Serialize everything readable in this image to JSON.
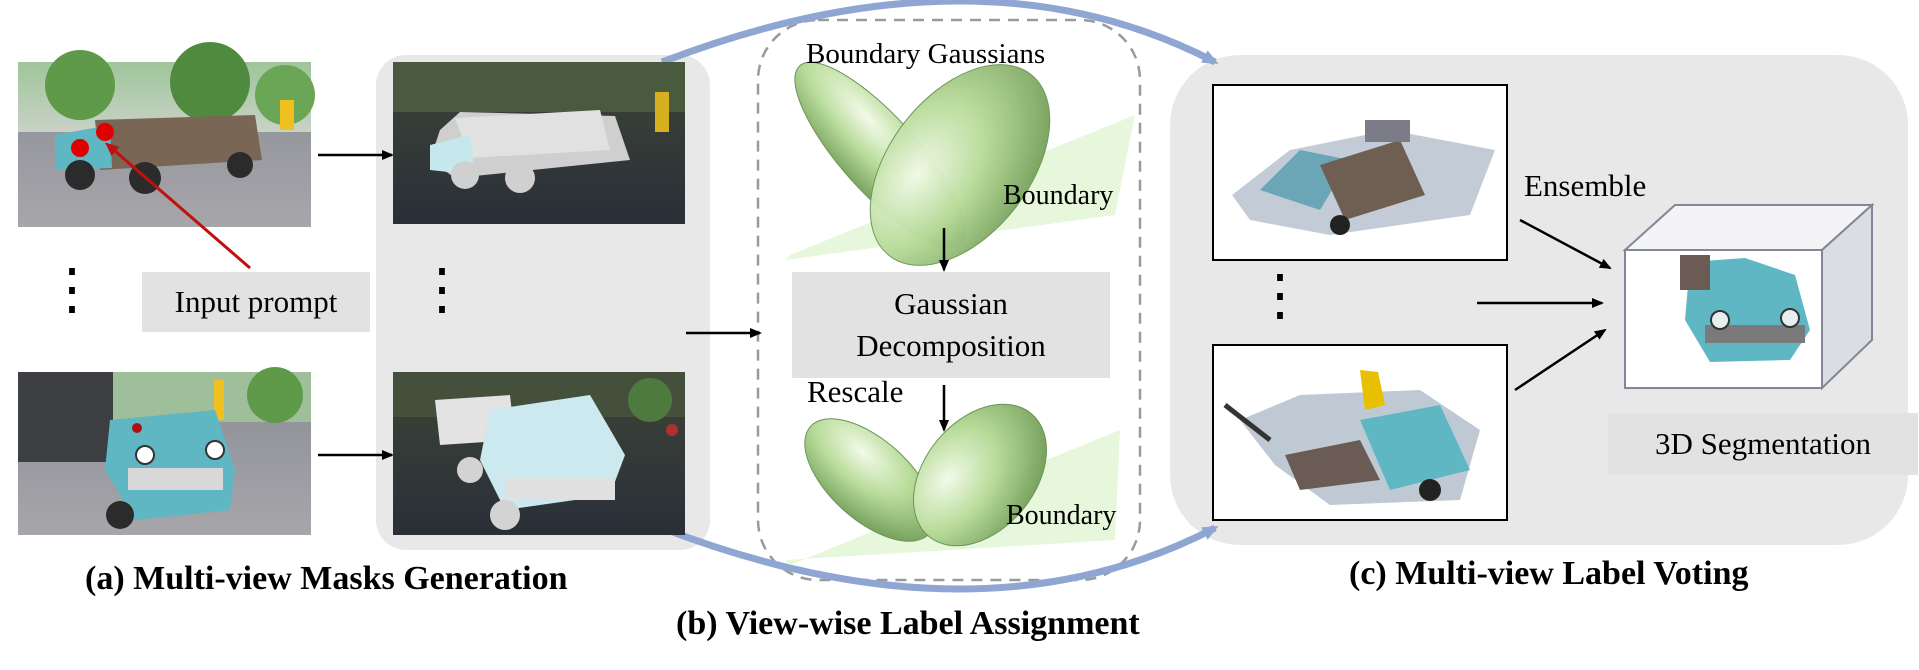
{
  "panels": {
    "a": {
      "caption": "(a) Multi-view Masks Generation",
      "prompt_label": "Input prompt",
      "ellipsis": "⋮"
    },
    "b": {
      "caption": "(b) View-wise Label Assignment",
      "top_label": "Boundary Gaussians",
      "boundary_top": "Boundary",
      "decomposition_line1": "Gaussian",
      "decomposition_line2": "Decomposition",
      "rescale_label": "Rescale",
      "boundary_bottom": "Boundary"
    },
    "c": {
      "caption": "(c) Multi-view Label Voting",
      "ensemble_label": "Ensemble",
      "result_label": "3D Segmentation",
      "ellipsis": "⋮"
    }
  },
  "colors": {
    "panel_bg": "#e8e8e8",
    "label_box": "#e2e2e2",
    "ellipsoid": "#a8d28a",
    "plane": "#e6f7dc",
    "truck_teal": "#5fb7c4",
    "prompt_point": "#e00000",
    "accent_arc": "#8fa6d2"
  }
}
